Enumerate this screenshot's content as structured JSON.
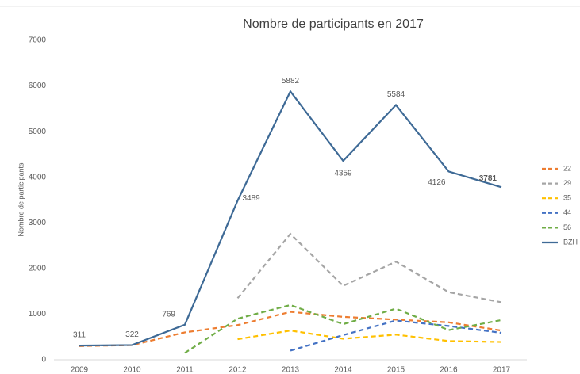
{
  "chart_data": {
    "type": "line",
    "title": "Nombre de participants en 2017",
    "ylabel": "Nombre de participants",
    "categories": [
      "2009",
      "2010",
      "2011",
      "2012",
      "2013",
      "2014",
      "2015",
      "2016",
      "2017"
    ],
    "ylim": [
      0,
      7000
    ],
    "yticks": [
      0,
      1000,
      2000,
      3000,
      4000,
      5000,
      6000,
      7000
    ],
    "grid": false,
    "legend": "right",
    "series": [
      {
        "name": "22",
        "color": "#ed7d31",
        "dash": true,
        "values": [
          300,
          320,
          600,
          760,
          1050,
          940,
          880,
          820,
          640
        ]
      },
      {
        "name": "29",
        "color": "#a5a5a5",
        "dash": true,
        "values": [
          null,
          null,
          null,
          1350,
          2760,
          1620,
          2150,
          1480,
          1260
        ]
      },
      {
        "name": "35",
        "color": "#ffc000",
        "dash": true,
        "values": [
          null,
          null,
          null,
          450,
          640,
          460,
          550,
          410,
          390
        ]
      },
      {
        "name": "44",
        "color": "#4472c4",
        "dash": true,
        "values": [
          null,
          null,
          null,
          null,
          200,
          540,
          860,
          740,
          590
        ]
      },
      {
        "name": "56",
        "color": "#70ad47",
        "dash": true,
        "values": [
          null,
          null,
          150,
          900,
          1200,
          780,
          1120,
          650,
          870
        ]
      },
      {
        "name": "BZH",
        "color": "#3e6a96",
        "dash": false,
        "values": [
          311,
          322,
          769,
          3489,
          5882,
          4359,
          5584,
          4126,
          3781
        ],
        "show_labels": true
      }
    ]
  }
}
